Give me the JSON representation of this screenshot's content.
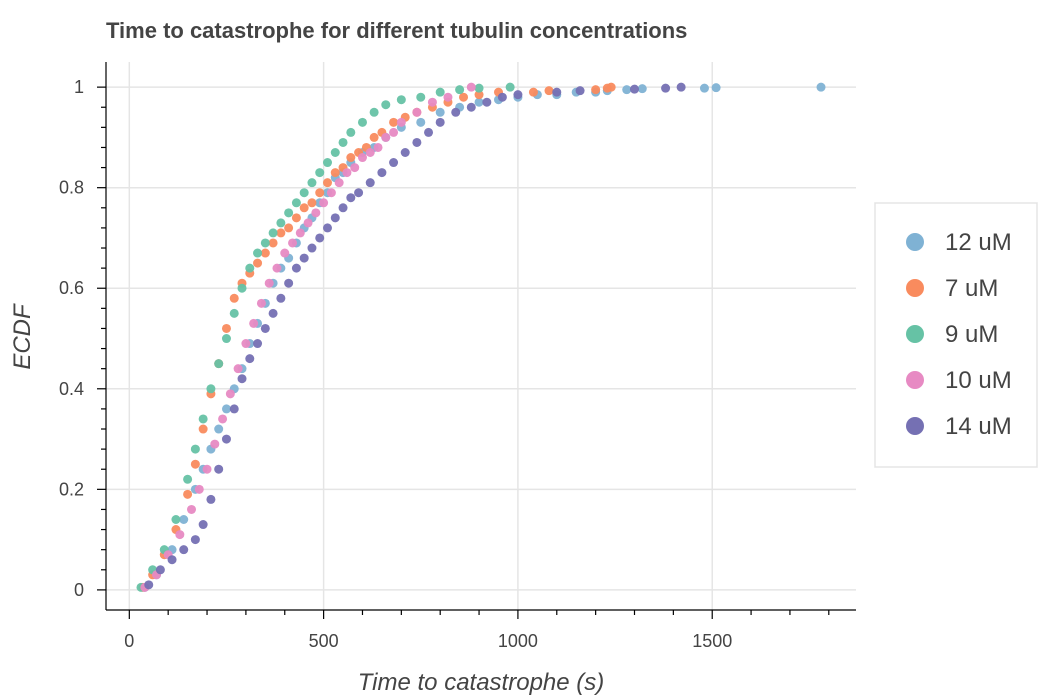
{
  "chart_data": {
    "type": "scatter",
    "title": "Time to catastrophe for different tubulin concentrations",
    "xlabel": "Time to catastrophe (s)",
    "ylabel": "ECDF",
    "xlim": [
      -60,
      1870
    ],
    "ylim": [
      -0.04,
      1.05
    ],
    "x_ticks": [
      0,
      500,
      1000,
      1500
    ],
    "x_tick_labels": [
      "0",
      "500",
      "1000",
      "1500"
    ],
    "y_ticks": [
      0,
      0.2,
      0.4,
      0.6,
      0.8,
      1
    ],
    "y_tick_labels": [
      "0",
      "0.2",
      "0.4",
      "0.6",
      "0.8",
      "1"
    ],
    "grid": true,
    "legend_position": "right",
    "series": [
      {
        "name": "12 uM",
        "color": "#7fb2d4",
        "x": [
          40,
          70,
          110,
          140,
          170,
          190,
          210,
          230,
          250,
          270,
          290,
          310,
          330,
          350,
          370,
          390,
          410,
          430,
          450,
          470,
          490,
          510,
          530,
          550,
          570,
          600,
          630,
          660,
          700,
          750,
          800,
          850,
          900,
          950,
          1000,
          1050,
          1100,
          1150,
          1200,
          1230,
          1280,
          1320,
          1480,
          1510,
          1780
        ],
        "y": [
          0.005,
          0.03,
          0.08,
          0.14,
          0.2,
          0.24,
          0.28,
          0.32,
          0.36,
          0.4,
          0.44,
          0.49,
          0.53,
          0.57,
          0.61,
          0.64,
          0.66,
          0.69,
          0.72,
          0.74,
          0.77,
          0.79,
          0.82,
          0.83,
          0.85,
          0.87,
          0.88,
          0.9,
          0.92,
          0.93,
          0.95,
          0.96,
          0.97,
          0.975,
          0.98,
          0.985,
          0.985,
          0.99,
          0.99,
          0.993,
          0.995,
          0.997,
          0.998,
          0.999,
          1.0
        ]
      },
      {
        "name": "7 uM",
        "color": "#f98b5e",
        "x": [
          35,
          60,
          90,
          120,
          150,
          170,
          190,
          210,
          230,
          250,
          270,
          290,
          310,
          330,
          350,
          370,
          390,
          410,
          430,
          450,
          470,
          490,
          510,
          530,
          550,
          570,
          590,
          610,
          630,
          650,
          680,
          710,
          740,
          780,
          820,
          860,
          900,
          950,
          1040,
          1080,
          1200,
          1230,
          1240
        ],
        "y": [
          0.005,
          0.03,
          0.07,
          0.12,
          0.19,
          0.25,
          0.32,
          0.39,
          0.45,
          0.52,
          0.58,
          0.61,
          0.63,
          0.65,
          0.67,
          0.69,
          0.71,
          0.72,
          0.74,
          0.76,
          0.77,
          0.79,
          0.81,
          0.83,
          0.84,
          0.86,
          0.87,
          0.88,
          0.9,
          0.91,
          0.93,
          0.94,
          0.95,
          0.96,
          0.97,
          0.98,
          0.985,
          0.99,
          0.99,
          0.993,
          0.995,
          0.998,
          1.0
        ]
      },
      {
        "name": "9 uM",
        "color": "#66c2a5",
        "x": [
          30,
          60,
          90,
          120,
          150,
          170,
          190,
          210,
          230,
          250,
          270,
          290,
          310,
          330,
          350,
          370,
          390,
          410,
          430,
          450,
          470,
          490,
          510,
          530,
          550,
          570,
          600,
          630,
          660,
          700,
          750,
          800,
          850,
          900,
          980
        ],
        "y": [
          0.005,
          0.04,
          0.08,
          0.14,
          0.22,
          0.28,
          0.34,
          0.4,
          0.45,
          0.5,
          0.55,
          0.6,
          0.64,
          0.67,
          0.69,
          0.71,
          0.73,
          0.75,
          0.77,
          0.79,
          0.81,
          0.83,
          0.85,
          0.87,
          0.89,
          0.91,
          0.93,
          0.95,
          0.965,
          0.975,
          0.98,
          0.99,
          0.995,
          0.998,
          1.0
        ]
      },
      {
        "name": "10 uM",
        "color": "#e78ac3",
        "x": [
          40,
          70,
          100,
          130,
          160,
          180,
          200,
          220,
          240,
          260,
          280,
          300,
          320,
          340,
          360,
          380,
          400,
          420,
          440,
          460,
          480,
          500,
          520,
          540,
          560,
          580,
          600,
          620,
          640,
          660,
          680,
          700,
          740,
          780,
          820,
          880
        ],
        "y": [
          0.005,
          0.03,
          0.07,
          0.11,
          0.16,
          0.2,
          0.24,
          0.29,
          0.34,
          0.39,
          0.44,
          0.49,
          0.53,
          0.57,
          0.61,
          0.64,
          0.67,
          0.69,
          0.71,
          0.73,
          0.75,
          0.77,
          0.79,
          0.81,
          0.83,
          0.84,
          0.86,
          0.87,
          0.88,
          0.9,
          0.91,
          0.93,
          0.95,
          0.97,
          0.98,
          1.0
        ]
      },
      {
        "name": "14 uM",
        "color": "#7570b3",
        "x": [
          50,
          80,
          110,
          140,
          170,
          190,
          210,
          230,
          250,
          270,
          290,
          310,
          330,
          350,
          370,
          390,
          410,
          430,
          450,
          470,
          490,
          510,
          530,
          550,
          570,
          590,
          620,
          650,
          680,
          710,
          740,
          770,
          800,
          840,
          880,
          920,
          960,
          1000,
          1100,
          1160,
          1300,
          1380,
          1420
        ],
        "y": [
          0.01,
          0.04,
          0.06,
          0.08,
          0.1,
          0.13,
          0.18,
          0.24,
          0.3,
          0.36,
          0.42,
          0.46,
          0.49,
          0.52,
          0.55,
          0.58,
          0.61,
          0.64,
          0.66,
          0.68,
          0.7,
          0.72,
          0.74,
          0.76,
          0.78,
          0.79,
          0.81,
          0.83,
          0.85,
          0.87,
          0.89,
          0.91,
          0.93,
          0.95,
          0.96,
          0.97,
          0.98,
          0.985,
          0.99,
          0.993,
          0.996,
          0.998,
          1.0
        ]
      }
    ]
  }
}
